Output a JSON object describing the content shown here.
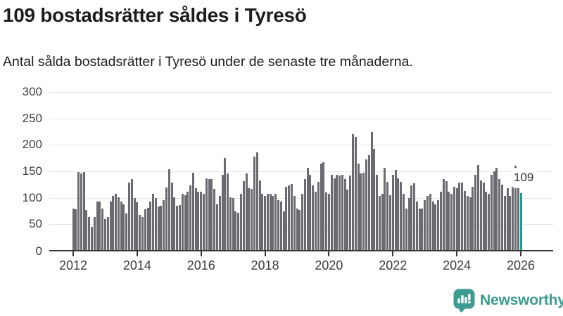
{
  "header": {
    "title": "109 bostadsrätter såldes i Tyresö",
    "subtitle": "Antal sålda bostadsrätter i Tyresö under de senaste tre månaderna."
  },
  "chart_data": {
    "type": "bar",
    "title": "109 bostadsrätter såldes i Tyresö",
    "subtitle": "Antal sålda bostadsrätter i Tyresö under de senaste tre månaderna.",
    "frequency": "monthly",
    "x_start": "2012-01",
    "x_end": "2026-01",
    "xlabel": "",
    "ylabel": "",
    "ylim": [
      0,
      300
    ],
    "yticks": [
      0,
      50,
      100,
      150,
      200,
      250,
      300
    ],
    "xticks": [
      "2012",
      "2014",
      "2016",
      "2018",
      "2020",
      "2022",
      "2024",
      "2026"
    ],
    "grid": true,
    "legend": false,
    "bar_color": "#6b6a70",
    "highlight": {
      "index": 168,
      "color": "#12a19a",
      "label": "109"
    },
    "values": [
      80,
      78,
      149,
      146,
      149,
      77,
      64,
      45,
      64,
      93,
      93,
      79,
      60,
      64,
      93,
      103,
      107,
      101,
      93,
      88,
      70,
      129,
      136,
      99,
      92,
      68,
      64,
      78,
      81,
      93,
      107,
      99,
      83,
      85,
      96,
      120,
      154,
      129,
      101,
      85,
      86,
      107,
      105,
      112,
      123,
      148,
      118,
      112,
      112,
      108,
      137,
      136,
      136,
      117,
      88,
      103,
      143,
      175,
      146,
      101,
      99,
      75,
      72,
      108,
      132,
      146,
      118,
      117,
      178,
      186,
      133,
      108,
      103,
      107,
      108,
      103,
      107,
      96,
      93,
      75,
      121,
      124,
      126,
      103,
      79,
      77,
      107,
      136,
      157,
      143,
      123,
      112,
      130,
      165,
      167,
      110,
      107,
      143,
      137,
      143,
      142,
      143,
      135,
      116,
      142,
      221,
      215,
      165,
      146,
      148,
      172,
      181,
      224,
      192,
      143,
      103,
      108,
      157,
      130,
      105,
      143,
      153,
      137,
      130,
      108,
      79,
      99,
      124,
      127,
      93,
      79,
      80,
      95,
      103,
      108,
      93,
      88,
      95,
      112,
      136,
      132,
      111,
      108,
      121,
      118,
      129,
      129,
      113,
      103,
      101,
      121,
      143,
      162,
      133,
      129,
      111,
      108,
      143,
      150,
      156,
      136,
      125,
      103,
      118,
      103,
      151,
      160,
      140,
      109
    ]
  },
  "footer": {
    "brand": "Newsworthy"
  }
}
